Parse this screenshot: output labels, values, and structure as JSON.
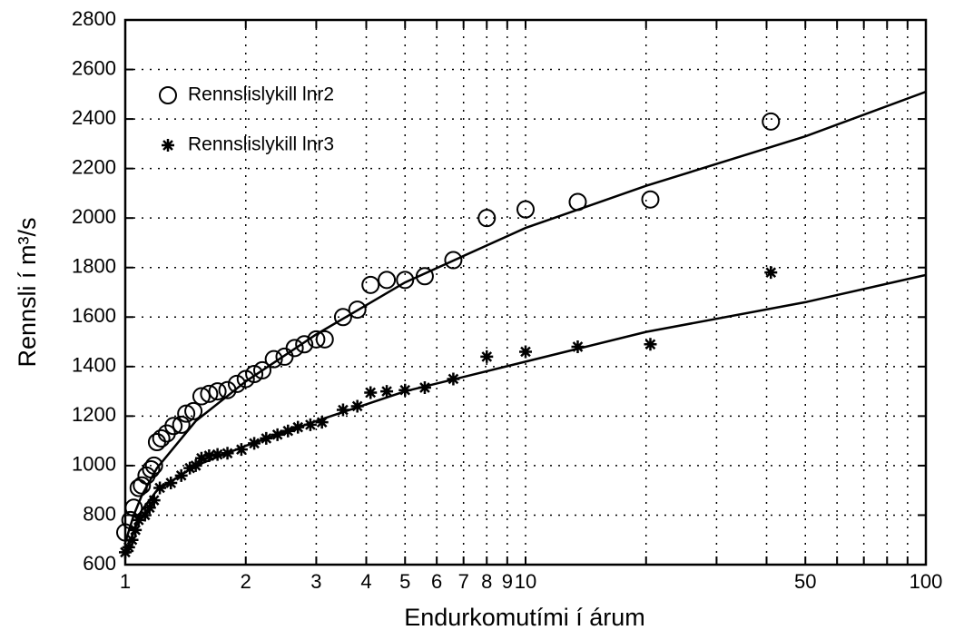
{
  "chart_data": {
    "type": "scatter",
    "x_label": "Endurkomutími í árum",
    "y_label": "Rennsli í m³/s",
    "xscale": "log",
    "xlim": [
      1,
      100
    ],
    "ylim": [
      600,
      2800
    ],
    "xticks": [
      1,
      2,
      3,
      4,
      5,
      6,
      7,
      8,
      9,
      10,
      50,
      100
    ],
    "xgrid_minor": [
      20,
      30,
      40,
      60,
      70,
      80,
      90
    ],
    "yticks": [
      600,
      800,
      1000,
      1200,
      1400,
      1600,
      1800,
      2000,
      2200,
      2400,
      2600,
      2800
    ],
    "grid": true,
    "legend": "upper left",
    "series": [
      {
        "name": "Rennslislykill lnr2",
        "marker": "circle",
        "color": "#000000",
        "x": [
          1.0,
          1.03,
          1.05,
          1.08,
          1.1,
          1.13,
          1.16,
          1.18,
          1.2,
          1.23,
          1.27,
          1.32,
          1.38,
          1.42,
          1.48,
          1.55,
          1.62,
          1.7,
          1.8,
          1.9,
          2.0,
          2.1,
          2.2,
          2.35,
          2.5,
          2.65,
          2.8,
          3.0,
          3.15,
          3.5,
          3.8,
          4.1,
          4.5,
          5.0,
          5.6,
          6.6,
          8.0,
          10.0,
          13.5,
          20.5,
          41
        ],
        "values": [
          730,
          780,
          830,
          910,
          920,
          960,
          985,
          1000,
          1095,
          1110,
          1130,
          1160,
          1165,
          1210,
          1220,
          1280,
          1290,
          1300,
          1305,
          1330,
          1350,
          1370,
          1385,
          1430,
          1440,
          1475,
          1490,
          1510,
          1510,
          1600,
          1630,
          1730,
          1750,
          1750,
          1765,
          1830,
          2000,
          2035,
          2065,
          2075,
          2390
        ]
      },
      {
        "name": "Rennslislykill lnr3",
        "marker": "asterisk",
        "color": "#000000",
        "x": [
          1.0,
          1.02,
          1.04,
          1.06,
          1.08,
          1.12,
          1.15,
          1.18,
          1.22,
          1.3,
          1.38,
          1.45,
          1.5,
          1.55,
          1.62,
          1.7,
          1.8,
          1.95,
          2.1,
          2.25,
          2.4,
          2.55,
          2.7,
          2.9,
          3.1,
          3.5,
          3.8,
          4.1,
          4.5,
          5.0,
          5.6,
          6.6,
          8.0,
          10.0,
          13.5,
          20.5,
          41
        ],
        "values": [
          650,
          670,
          700,
          740,
          780,
          800,
          830,
          860,
          910,
          930,
          960,
          990,
          1000,
          1030,
          1040,
          1045,
          1050,
          1065,
          1090,
          1110,
          1125,
          1140,
          1155,
          1165,
          1175,
          1225,
          1240,
          1295,
          1300,
          1305,
          1315,
          1350,
          1440,
          1460,
          1480,
          1490,
          1780
        ]
      }
    ],
    "fits": [
      {
        "color": "#000000",
        "x": [
          1,
          1.05,
          1.1,
          1.2,
          1.5,
          2,
          3,
          5,
          10,
          20,
          50,
          100
        ],
        "values": [
          690,
          800,
          880,
          990,
          1180,
          1340,
          1530,
          1740,
          1960,
          2130,
          2330,
          2510
        ]
      },
      {
        "color": "#000000",
        "x": [
          1,
          1.1,
          1.2,
          1.5,
          2,
          3,
          5,
          10,
          20,
          50,
          100
        ],
        "values": [
          640,
          820,
          900,
          1000,
          1080,
          1180,
          1300,
          1420,
          1540,
          1660,
          1770
        ]
      }
    ]
  }
}
